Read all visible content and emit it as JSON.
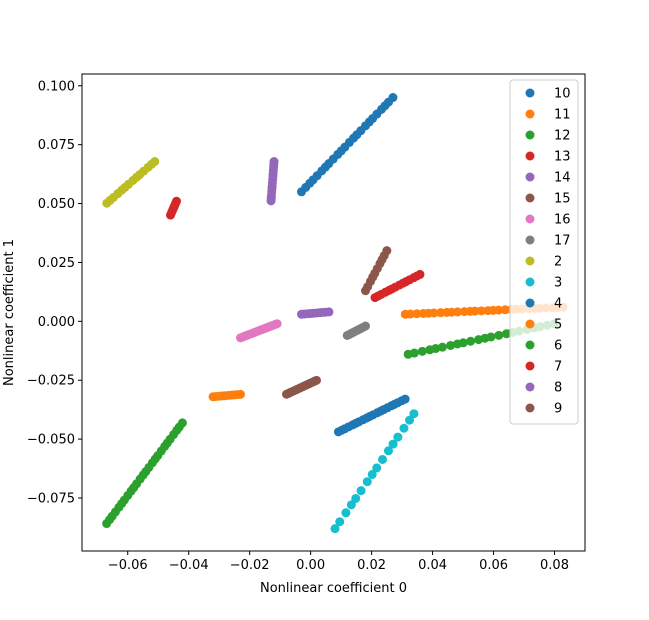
{
  "chart_data": {
    "type": "scatter",
    "xlabel": "Nonlinear coefficient 0",
    "ylabel": "Nonlinear coefficient 1",
    "xlim": [
      -0.075,
      0.09
    ],
    "ylim": [
      -0.0975,
      0.105
    ],
    "xticks": [
      -0.06,
      -0.04,
      -0.02,
      0.0,
      0.02,
      0.04,
      0.06,
      0.08
    ],
    "xtick_labels": [
      "−0.06",
      "−0.04",
      "−0.02",
      "0.00",
      "0.02",
      "0.04",
      "0.06",
      "0.08"
    ],
    "yticks": [
      -0.075,
      -0.05,
      -0.025,
      0.0,
      0.025,
      0.05,
      0.075,
      0.1
    ],
    "ytick_labels": [
      "−0.075",
      "−0.050",
      "−0.025",
      "0.000",
      "0.025",
      "0.050",
      "0.075",
      "0.100"
    ],
    "grid": false,
    "legend_position": "top-right",
    "series": [
      {
        "name": "10",
        "color": "#1f77b4",
        "x_range": [
          -0.003,
          0.027
        ],
        "y_range": [
          0.055,
          0.095
        ],
        "n": 24
      },
      {
        "name": "11",
        "color": "#ff7f0e",
        "x_range": [
          0.031,
          0.083
        ],
        "y_range": [
          0.003,
          0.006
        ],
        "n": 28
      },
      {
        "name": "12",
        "color": "#2ca02c",
        "x_range": [
          -0.067,
          -0.042
        ],
        "y_range": [
          -0.086,
          -0.043
        ],
        "n": 26
      },
      {
        "name": "13",
        "color": "#d62728",
        "x_range": [
          -0.046,
          -0.044
        ],
        "y_range": [
          0.045,
          0.051
        ],
        "n": 8
      },
      {
        "name": "14",
        "color": "#9467bd",
        "x_range": [
          -0.013,
          -0.012
        ],
        "y_range": [
          0.051,
          0.068
        ],
        "n": 14
      },
      {
        "name": "15",
        "color": "#8c564b",
        "x_range": [
          0.018,
          0.025
        ],
        "y_range": [
          0.013,
          0.03
        ],
        "n": 10
      },
      {
        "name": "16",
        "color": "#e377c2",
        "x_range": [
          -0.023,
          -0.011
        ],
        "y_range": [
          -0.007,
          -0.001
        ],
        "n": 18
      },
      {
        "name": "17",
        "color": "#7f7f7f",
        "x_range": [
          0.012,
          0.018
        ],
        "y_range": [
          -0.006,
          -0.002
        ],
        "n": 10
      },
      {
        "name": "2",
        "color": "#bcbd22",
        "x_range": [
          -0.067,
          -0.051
        ],
        "y_range": [
          0.05,
          0.068
        ],
        "n": 14
      },
      {
        "name": "3",
        "color": "#17becf",
        "x_range": [
          0.008,
          0.034
        ],
        "y_range": [
          -0.088,
          -0.039
        ],
        "n": 16
      },
      {
        "name": "4",
        "color": "#1f77b4",
        "x_range": [
          0.009,
          0.031
        ],
        "y_range": [
          -0.047,
          -0.033
        ],
        "n": 20
      },
      {
        "name": "5",
        "color": "#ff7f0e",
        "x_range": [
          -0.032,
          -0.023
        ],
        "y_range": [
          -0.032,
          -0.031
        ],
        "n": 10
      },
      {
        "name": "6",
        "color": "#2ca02c",
        "x_range": [
          0.032,
          0.08
        ],
        "y_range": [
          -0.014,
          -0.001
        ],
        "n": 22
      },
      {
        "name": "7",
        "color": "#d62728",
        "x_range": [
          0.021,
          0.036
        ],
        "y_range": [
          0.01,
          0.02
        ],
        "n": 14
      },
      {
        "name": "8",
        "color": "#9467bd",
        "x_range": [
          -0.003,
          0.006
        ],
        "y_range": [
          0.003,
          0.004
        ],
        "n": 10
      },
      {
        "name": "9",
        "color": "#8c564b",
        "x_range": [
          -0.008,
          0.002
        ],
        "y_range": [
          -0.031,
          -0.025
        ],
        "n": 14
      }
    ]
  }
}
